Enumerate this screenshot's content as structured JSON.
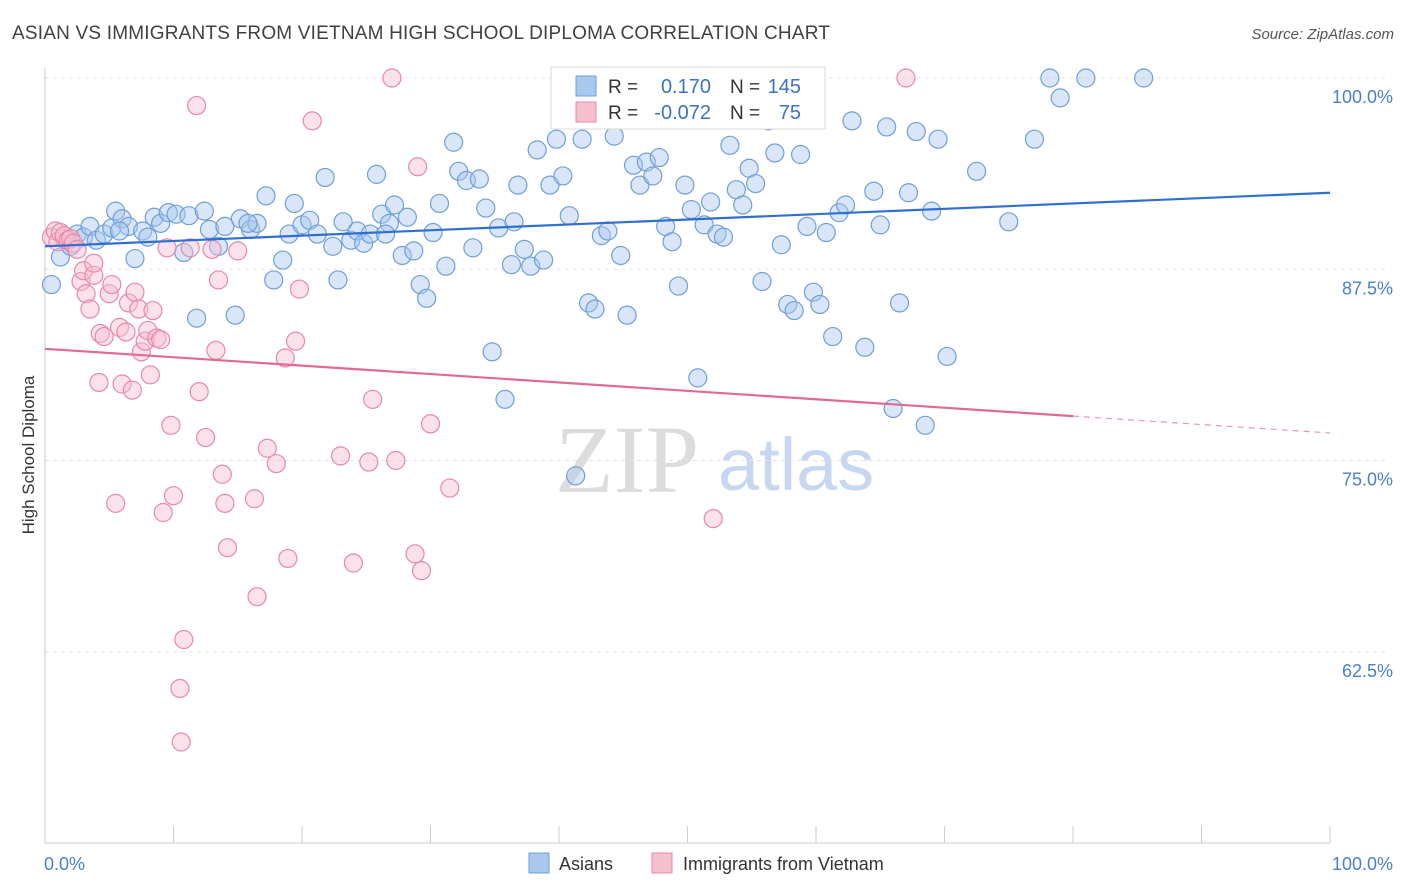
{
  "header": {
    "title": "ASIAN VS IMMIGRANTS FROM VIETNAM HIGH SCHOOL DIPLOMA CORRELATION CHART",
    "source": "Source: ZipAtlas.com"
  },
  "watermark": {
    "zip": "ZIP",
    "atlas": "atlas"
  },
  "colors": {
    "blue_fill": "#a8c8ee",
    "blue_stroke": "#6f9fd8",
    "blue_line": "#2f6fd0",
    "pink_fill": "#f6bfd0",
    "pink_stroke": "#e888a8",
    "pink_line": "#e06a94",
    "grid": "#e3e3e3",
    "tick_label": "#4a7fcb"
  },
  "stats": {
    "r_label": "R =",
    "n_label": "N =",
    "rows": [
      {
        "r": "0.170",
        "n": "145"
      },
      {
        "r": "-0.072",
        "n": "75"
      }
    ]
  },
  "chart_data": {
    "type": "scatter",
    "title": "ASIAN VS IMMIGRANTS FROM VIETNAM HIGH SCHOOL DIPLOMA CORRELATION CHART",
    "xlabel": "",
    "ylabel": "High School Diploma",
    "xlim": [
      0,
      100
    ],
    "ylim": [
      50,
      100
    ],
    "x_tick_labels": [
      "0.0%",
      "100.0%"
    ],
    "y_ticks": [
      62.5,
      75.0,
      87.5,
      100.0
    ],
    "y_tick_labels": [
      "62.5%",
      "75.0%",
      "87.5%",
      "100.0%"
    ],
    "grid": "horizontal dashed",
    "legend_position": "bottom-center",
    "series": [
      {
        "name": "Asians",
        "color": "#a8c8ee",
        "trend": {
          "x": [
            0,
            100
          ],
          "y": [
            89.0,
            92.5
          ],
          "dashed_from": null
        },
        "points": [
          [
            0.5,
            86.5
          ],
          [
            1.2,
            88.3
          ],
          [
            1.5,
            89.5
          ],
          [
            2.0,
            89.0
          ],
          [
            2.5,
            89.8
          ],
          [
            3.0,
            89.6
          ],
          [
            3.5,
            90.3
          ],
          [
            4.0,
            89.4
          ],
          [
            4.6,
            89.8
          ],
          [
            5.2,
            90.2
          ],
          [
            5.5,
            91.3
          ],
          [
            6.0,
            90.8
          ],
          [
            6.5,
            90.3
          ],
          [
            7.0,
            88.2
          ],
          [
            7.6,
            90.0
          ],
          [
            8.0,
            89.6
          ],
          [
            8.5,
            90.9
          ],
          [
            9.0,
            90.5
          ],
          [
            9.6,
            91.2
          ],
          [
            10.2,
            91.1
          ],
          [
            10.8,
            88.6
          ],
          [
            11.2,
            91.0
          ],
          [
            11.8,
            84.3
          ],
          [
            12.4,
            91.3
          ],
          [
            12.8,
            90.1
          ],
          [
            13.5,
            89.0
          ],
          [
            14.0,
            90.3
          ],
          [
            14.8,
            84.5
          ],
          [
            15.2,
            90.8
          ],
          [
            16.0,
            90.1
          ],
          [
            16.5,
            90.5
          ],
          [
            17.2,
            92.3
          ],
          [
            17.8,
            86.8
          ],
          [
            18.5,
            88.1
          ],
          [
            19.0,
            89.8
          ],
          [
            19.4,
            91.8
          ],
          [
            20.0,
            90.4
          ],
          [
            20.6,
            90.7
          ],
          [
            21.2,
            89.8
          ],
          [
            21.8,
            93.5
          ],
          [
            22.4,
            89.0
          ],
          [
            22.8,
            86.8
          ],
          [
            23.2,
            90.6
          ],
          [
            23.8,
            89.4
          ],
          [
            24.3,
            90.0
          ],
          [
            24.8,
            89.2
          ],
          [
            25.3,
            89.8
          ],
          [
            25.8,
            93.7
          ],
          [
            26.2,
            91.1
          ],
          [
            26.8,
            90.5
          ],
          [
            27.2,
            91.7
          ],
          [
            27.8,
            88.4
          ],
          [
            28.2,
            90.9
          ],
          [
            28.7,
            88.7
          ],
          [
            29.2,
            86.5
          ],
          [
            29.7,
            85.6
          ],
          [
            30.2,
            89.9
          ],
          [
            30.7,
            91.8
          ],
          [
            31.2,
            87.7
          ],
          [
            31.8,
            95.8
          ],
          [
            32.2,
            93.9
          ],
          [
            32.8,
            93.3
          ],
          [
            33.3,
            88.9
          ],
          [
            33.8,
            93.4
          ],
          [
            34.3,
            91.5
          ],
          [
            34.8,
            82.1
          ],
          [
            35.3,
            90.2
          ],
          [
            35.8,
            79.0
          ],
          [
            36.3,
            87.8
          ],
          [
            36.8,
            93.0
          ],
          [
            37.3,
            88.8
          ],
          [
            37.8,
            87.7
          ],
          [
            38.3,
            95.3
          ],
          [
            38.8,
            88.1
          ],
          [
            39.3,
            93.0
          ],
          [
            39.8,
            96.0
          ],
          [
            40.3,
            93.6
          ],
          [
            40.8,
            91.0
          ],
          [
            41.3,
            74.0
          ],
          [
            41.8,
            96.0
          ],
          [
            42.3,
            85.3
          ],
          [
            42.8,
            84.9
          ],
          [
            43.3,
            89.7
          ],
          [
            43.8,
            90.0
          ],
          [
            44.3,
            96.2
          ],
          [
            44.8,
            88.4
          ],
          [
            45.3,
            84.5
          ],
          [
            45.8,
            94.3
          ],
          [
            46.3,
            93.0
          ],
          [
            46.8,
            94.5
          ],
          [
            47.3,
            93.6
          ],
          [
            47.8,
            94.8
          ],
          [
            48.3,
            90.3
          ],
          [
            48.8,
            89.3
          ],
          [
            49.3,
            86.4
          ],
          [
            49.8,
            93.0
          ],
          [
            50.3,
            91.4
          ],
          [
            50.8,
            80.4
          ],
          [
            51.3,
            90.4
          ],
          [
            51.8,
            91.9
          ],
          [
            52.3,
            89.8
          ],
          [
            52.8,
            89.6
          ],
          [
            53.3,
            95.6
          ],
          [
            53.8,
            92.7
          ],
          [
            54.3,
            91.7
          ],
          [
            54.8,
            94.1
          ],
          [
            55.3,
            93.1
          ],
          [
            55.8,
            86.7
          ],
          [
            56.3,
            97.2
          ],
          [
            56.8,
            95.1
          ],
          [
            57.3,
            89.1
          ],
          [
            57.8,
            85.2
          ],
          [
            58.3,
            84.8
          ],
          [
            58.8,
            95.0
          ],
          [
            59.3,
            90.3
          ],
          [
            59.8,
            86.0
          ],
          [
            60.3,
            85.2
          ],
          [
            60.8,
            89.9
          ],
          [
            61.3,
            83.1
          ],
          [
            61.8,
            91.2
          ],
          [
            62.3,
            91.7
          ],
          [
            62.8,
            97.2
          ],
          [
            63.8,
            82.4
          ],
          [
            64.5,
            92.6
          ],
          [
            65.0,
            90.4
          ],
          [
            65.5,
            96.8
          ],
          [
            66.0,
            78.4
          ],
          [
            66.5,
            85.3
          ],
          [
            67.2,
            92.5
          ],
          [
            67.8,
            96.5
          ],
          [
            68.5,
            77.3
          ],
          [
            69.0,
            91.3
          ],
          [
            69.5,
            96.0
          ],
          [
            70.2,
            81.8
          ],
          [
            72.5,
            93.9
          ],
          [
            75.0,
            90.6
          ],
          [
            77.0,
            96.0
          ],
          [
            78.2,
            100.0
          ],
          [
            79.0,
            98.7
          ],
          [
            81.0,
            100.0
          ],
          [
            85.5,
            100.0
          ],
          [
            36.5,
            90.6
          ],
          [
            26.5,
            89.8
          ],
          [
            15.8,
            90.5
          ],
          [
            5.8,
            90.0
          ]
        ]
      },
      {
        "name": "Immigrants from Vietnam",
        "color": "#f6bfd0",
        "trend": {
          "x": [
            0,
            100
          ],
          "y": [
            82.3,
            76.8
          ],
          "dashed_from": 80
        },
        "points": [
          [
            0.5,
            89.6
          ],
          [
            0.8,
            90.0
          ],
          [
            1.0,
            89.3
          ],
          [
            1.2,
            89.9
          ],
          [
            1.5,
            89.7
          ],
          [
            1.8,
            89.4
          ],
          [
            2.0,
            89.5
          ],
          [
            2.2,
            89.2
          ],
          [
            2.5,
            88.8
          ],
          [
            2.8,
            86.7
          ],
          [
            3.0,
            87.4
          ],
          [
            3.2,
            85.9
          ],
          [
            3.5,
            84.9
          ],
          [
            3.8,
            87.1
          ],
          [
            3.8,
            87.9
          ],
          [
            4.2,
            80.1
          ],
          [
            4.3,
            83.3
          ],
          [
            4.6,
            83.1
          ],
          [
            5.0,
            85.9
          ],
          [
            5.2,
            86.5
          ],
          [
            5.5,
            72.2
          ],
          [
            5.8,
            83.7
          ],
          [
            6.0,
            80.0
          ],
          [
            6.3,
            83.4
          ],
          [
            6.5,
            85.3
          ],
          [
            6.8,
            79.6
          ],
          [
            7.0,
            86.0
          ],
          [
            7.3,
            84.9
          ],
          [
            7.5,
            82.1
          ],
          [
            7.8,
            82.8
          ],
          [
            8.0,
            83.5
          ],
          [
            8.2,
            80.6
          ],
          [
            8.4,
            84.8
          ],
          [
            8.7,
            83.0
          ],
          [
            9.0,
            82.9
          ],
          [
            9.2,
            71.6
          ],
          [
            9.5,
            88.9
          ],
          [
            9.8,
            77.3
          ],
          [
            10.0,
            72.7
          ],
          [
            10.5,
            60.1
          ],
          [
            10.8,
            63.3
          ],
          [
            10.6,
            56.6
          ],
          [
            11.3,
            88.9
          ],
          [
            11.8,
            98.2
          ],
          [
            12.0,
            79.5
          ],
          [
            12.5,
            76.5
          ],
          [
            13.0,
            88.8
          ],
          [
            13.3,
            82.2
          ],
          [
            13.5,
            86.8
          ],
          [
            13.8,
            74.1
          ],
          [
            14.0,
            72.2
          ],
          [
            14.2,
            69.3
          ],
          [
            15.0,
            88.7
          ],
          [
            16.5,
            66.1
          ],
          [
            16.3,
            72.5
          ],
          [
            17.3,
            75.8
          ],
          [
            18.0,
            74.8
          ],
          [
            18.7,
            81.7
          ],
          [
            18.9,
            68.6
          ],
          [
            19.5,
            82.8
          ],
          [
            19.8,
            86.2
          ],
          [
            20.8,
            97.2
          ],
          [
            23.0,
            75.3
          ],
          [
            24.0,
            68.3
          ],
          [
            25.2,
            74.9
          ],
          [
            25.5,
            79.0
          ],
          [
            27.0,
            100.0
          ],
          [
            27.3,
            75.0
          ],
          [
            28.8,
            68.9
          ],
          [
            29.0,
            94.2
          ],
          [
            29.3,
            67.8
          ],
          [
            30.0,
            77.4
          ],
          [
            31.5,
            73.2
          ],
          [
            52.0,
            71.2
          ],
          [
            67.0,
            100.0
          ]
        ]
      }
    ]
  },
  "legend": {
    "items": [
      {
        "label": "Asians"
      },
      {
        "label": "Immigrants from Vietnam"
      }
    ]
  }
}
